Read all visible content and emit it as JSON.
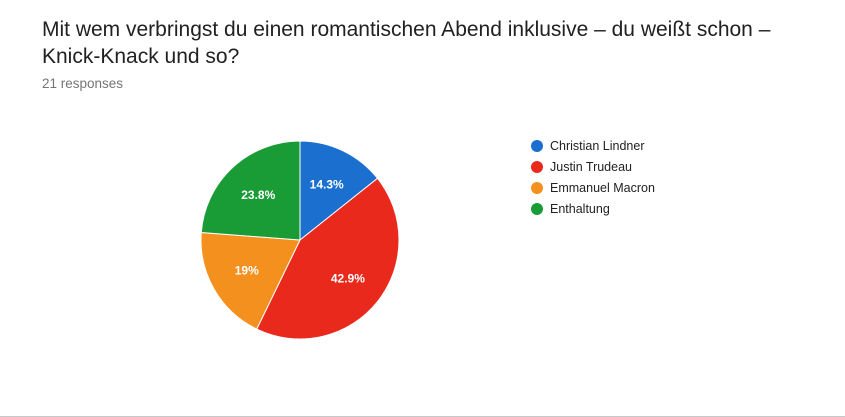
{
  "question": {
    "title": "Mit wem verbringst du einen romantischen Abend inklusive – du weißt schon – Knick-Knack und so?",
    "responses": "21 responses"
  },
  "chart_data": {
    "type": "pie",
    "categories": [
      "Christian Lindner",
      "Justin Trudeau",
      "Emmanuel Macron",
      "Enthaltung"
    ],
    "values": [
      14.3,
      42.9,
      19,
      23.8
    ],
    "labels": [
      "14.3%",
      "42.9%",
      "19%",
      "23.8%"
    ],
    "colors": [
      "#1a6fcf",
      "#e8291c",
      "#f4911e",
      "#199b36"
    ],
    "legend_position": "right"
  }
}
